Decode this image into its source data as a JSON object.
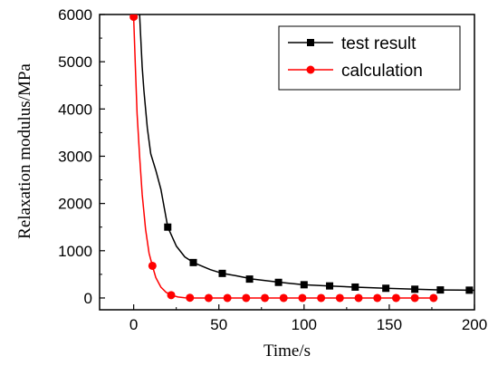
{
  "chart_data": {
    "type": "line",
    "title": "",
    "xlabel": "Time/s",
    "ylabel": "Relaxation modulus/MPa",
    "xlim": [
      -20,
      200
    ],
    "ylim": [
      -250,
      6000
    ],
    "xticks": [
      0,
      50,
      100,
      150,
      200
    ],
    "yticks": [
      0,
      1000,
      2000,
      3000,
      4000,
      5000,
      6000
    ],
    "grid": false,
    "legend_position": "top-right",
    "series": [
      {
        "name": "test result",
        "color": "#000000",
        "marker": "square",
        "curve": [
          [
            3.5,
            6000
          ],
          [
            4,
            5600
          ],
          [
            5,
            4900
          ],
          [
            6,
            4400
          ],
          [
            8,
            3600
          ],
          [
            10,
            3050
          ],
          [
            13,
            2700
          ],
          [
            16,
            2300
          ],
          [
            20,
            1500
          ],
          [
            25,
            1100
          ],
          [
            30,
            870
          ],
          [
            35,
            750
          ],
          [
            45,
            600
          ],
          [
            52,
            520
          ],
          [
            60,
            470
          ],
          [
            70,
            400
          ],
          [
            80,
            355
          ],
          [
            90,
            315
          ],
          [
            100,
            280
          ],
          [
            115,
            255
          ],
          [
            130,
            230
          ],
          [
            148,
            205
          ],
          [
            165,
            185
          ],
          [
            180,
            170
          ],
          [
            197,
            165
          ],
          [
            202,
            162
          ]
        ],
        "markers": [
          [
            20,
            1500
          ],
          [
            35,
            750
          ],
          [
            52,
            520
          ],
          [
            68,
            400
          ],
          [
            85,
            330
          ],
          [
            100,
            280
          ],
          [
            115,
            255
          ],
          [
            130,
            230
          ],
          [
            148,
            205
          ],
          [
            165,
            185
          ],
          [
            180,
            170
          ],
          [
            197,
            165
          ]
        ]
      },
      {
        "name": "calculation",
        "color": "#ff0000",
        "marker": "circle",
        "curve": [
          [
            0,
            5950
          ],
          [
            1,
            4900
          ],
          [
            2,
            3900
          ],
          [
            3.5,
            3000
          ],
          [
            5,
            2200
          ],
          [
            7,
            1450
          ],
          [
            9,
            950
          ],
          [
            11,
            680
          ],
          [
            13,
            430
          ],
          [
            16,
            230
          ],
          [
            19,
            120
          ],
          [
            22,
            60
          ],
          [
            26,
            20
          ],
          [
            30,
            5
          ],
          [
            34,
            0
          ],
          [
            178,
            0
          ]
        ],
        "markers": [
          [
            0,
            5950
          ],
          [
            11,
            680
          ],
          [
            22,
            60
          ],
          [
            33,
            5
          ],
          [
            44,
            0
          ],
          [
            55,
            0
          ],
          [
            66,
            0
          ],
          [
            77,
            0
          ],
          [
            88,
            0
          ],
          [
            99,
            0
          ],
          [
            110,
            0
          ],
          [
            121,
            0
          ],
          [
            132,
            0
          ],
          [
            143,
            0
          ],
          [
            154,
            0
          ],
          [
            165,
            0
          ],
          [
            176,
            0
          ]
        ]
      }
    ]
  }
}
